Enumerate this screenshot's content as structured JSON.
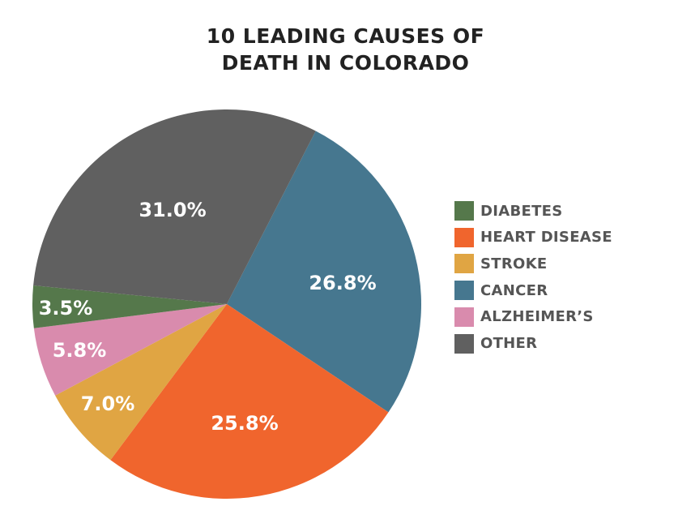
{
  "chart_data": {
    "type": "pie",
    "title_lines": [
      "10 LEADING CAUSES OF",
      "DEATH IN COLORADO"
    ],
    "start_angle_deg": 27.2,
    "direction": "clockwise",
    "slices": [
      {
        "label": "CANCER",
        "value": 26.8,
        "value_label": "26.8%",
        "color": "#46778f"
      },
      {
        "label": "HEART DISEASE",
        "value": 25.8,
        "value_label": "25.8%",
        "color": "#f0652d"
      },
      {
        "label": "STROKE",
        "value": 7.0,
        "value_label": "7.0%",
        "color": "#e0a543"
      },
      {
        "label": "ALZHEIMER’S",
        "value": 5.8,
        "value_label": "5.8%",
        "color": "#d98bad"
      },
      {
        "label": "DIABETES",
        "value": 3.5,
        "value_label": "3.5%",
        "color": "#55784b"
      },
      {
        "label": "OTHER",
        "value": 31.0,
        "value_label": "31.0%",
        "color": "#606060"
      }
    ],
    "legend": {
      "placement": "right",
      "items": [
        {
          "label": "DIABETES",
          "color": "#55784b"
        },
        {
          "label": "HEART DISEASE",
          "color": "#f0652d"
        },
        {
          "label": "STROKE",
          "color": "#e0a543"
        },
        {
          "label": "CANCER",
          "color": "#46778f"
        },
        {
          "label": "ALZHEIMER’S",
          "color": "#d98bad"
        },
        {
          "label": "OTHER",
          "color": "#606060"
        }
      ]
    }
  }
}
